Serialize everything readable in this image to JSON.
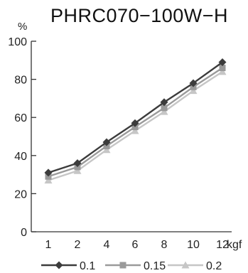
{
  "chart_data": {
    "type": "line",
    "title": "PHRC070−100W−H",
    "y_unit": "%",
    "x_unit": "kgf",
    "categories": [
      "1",
      "2",
      "4",
      "6",
      "8",
      "10",
      "12"
    ],
    "ylim": [
      0,
      100
    ],
    "yticks": [
      "0",
      "20",
      "40",
      "60",
      "80",
      "100"
    ],
    "grid": false,
    "legend_position": "bottom",
    "series": [
      {
        "name": "0.1",
        "values": [
          31,
          36,
          47,
          57,
          68,
          78,
          89
        ],
        "color": "#3c3c3c",
        "marker": "diamond"
      },
      {
        "name": "0.15",
        "values": [
          29,
          34,
          45,
          55,
          65,
          76,
          86
        ],
        "color": "#9a9a9a",
        "marker": "square"
      },
      {
        "name": "0.2",
        "values": [
          27,
          32,
          43,
          53,
          63,
          74,
          84
        ],
        "color": "#c6c6c6",
        "marker": "triangle"
      }
    ]
  }
}
